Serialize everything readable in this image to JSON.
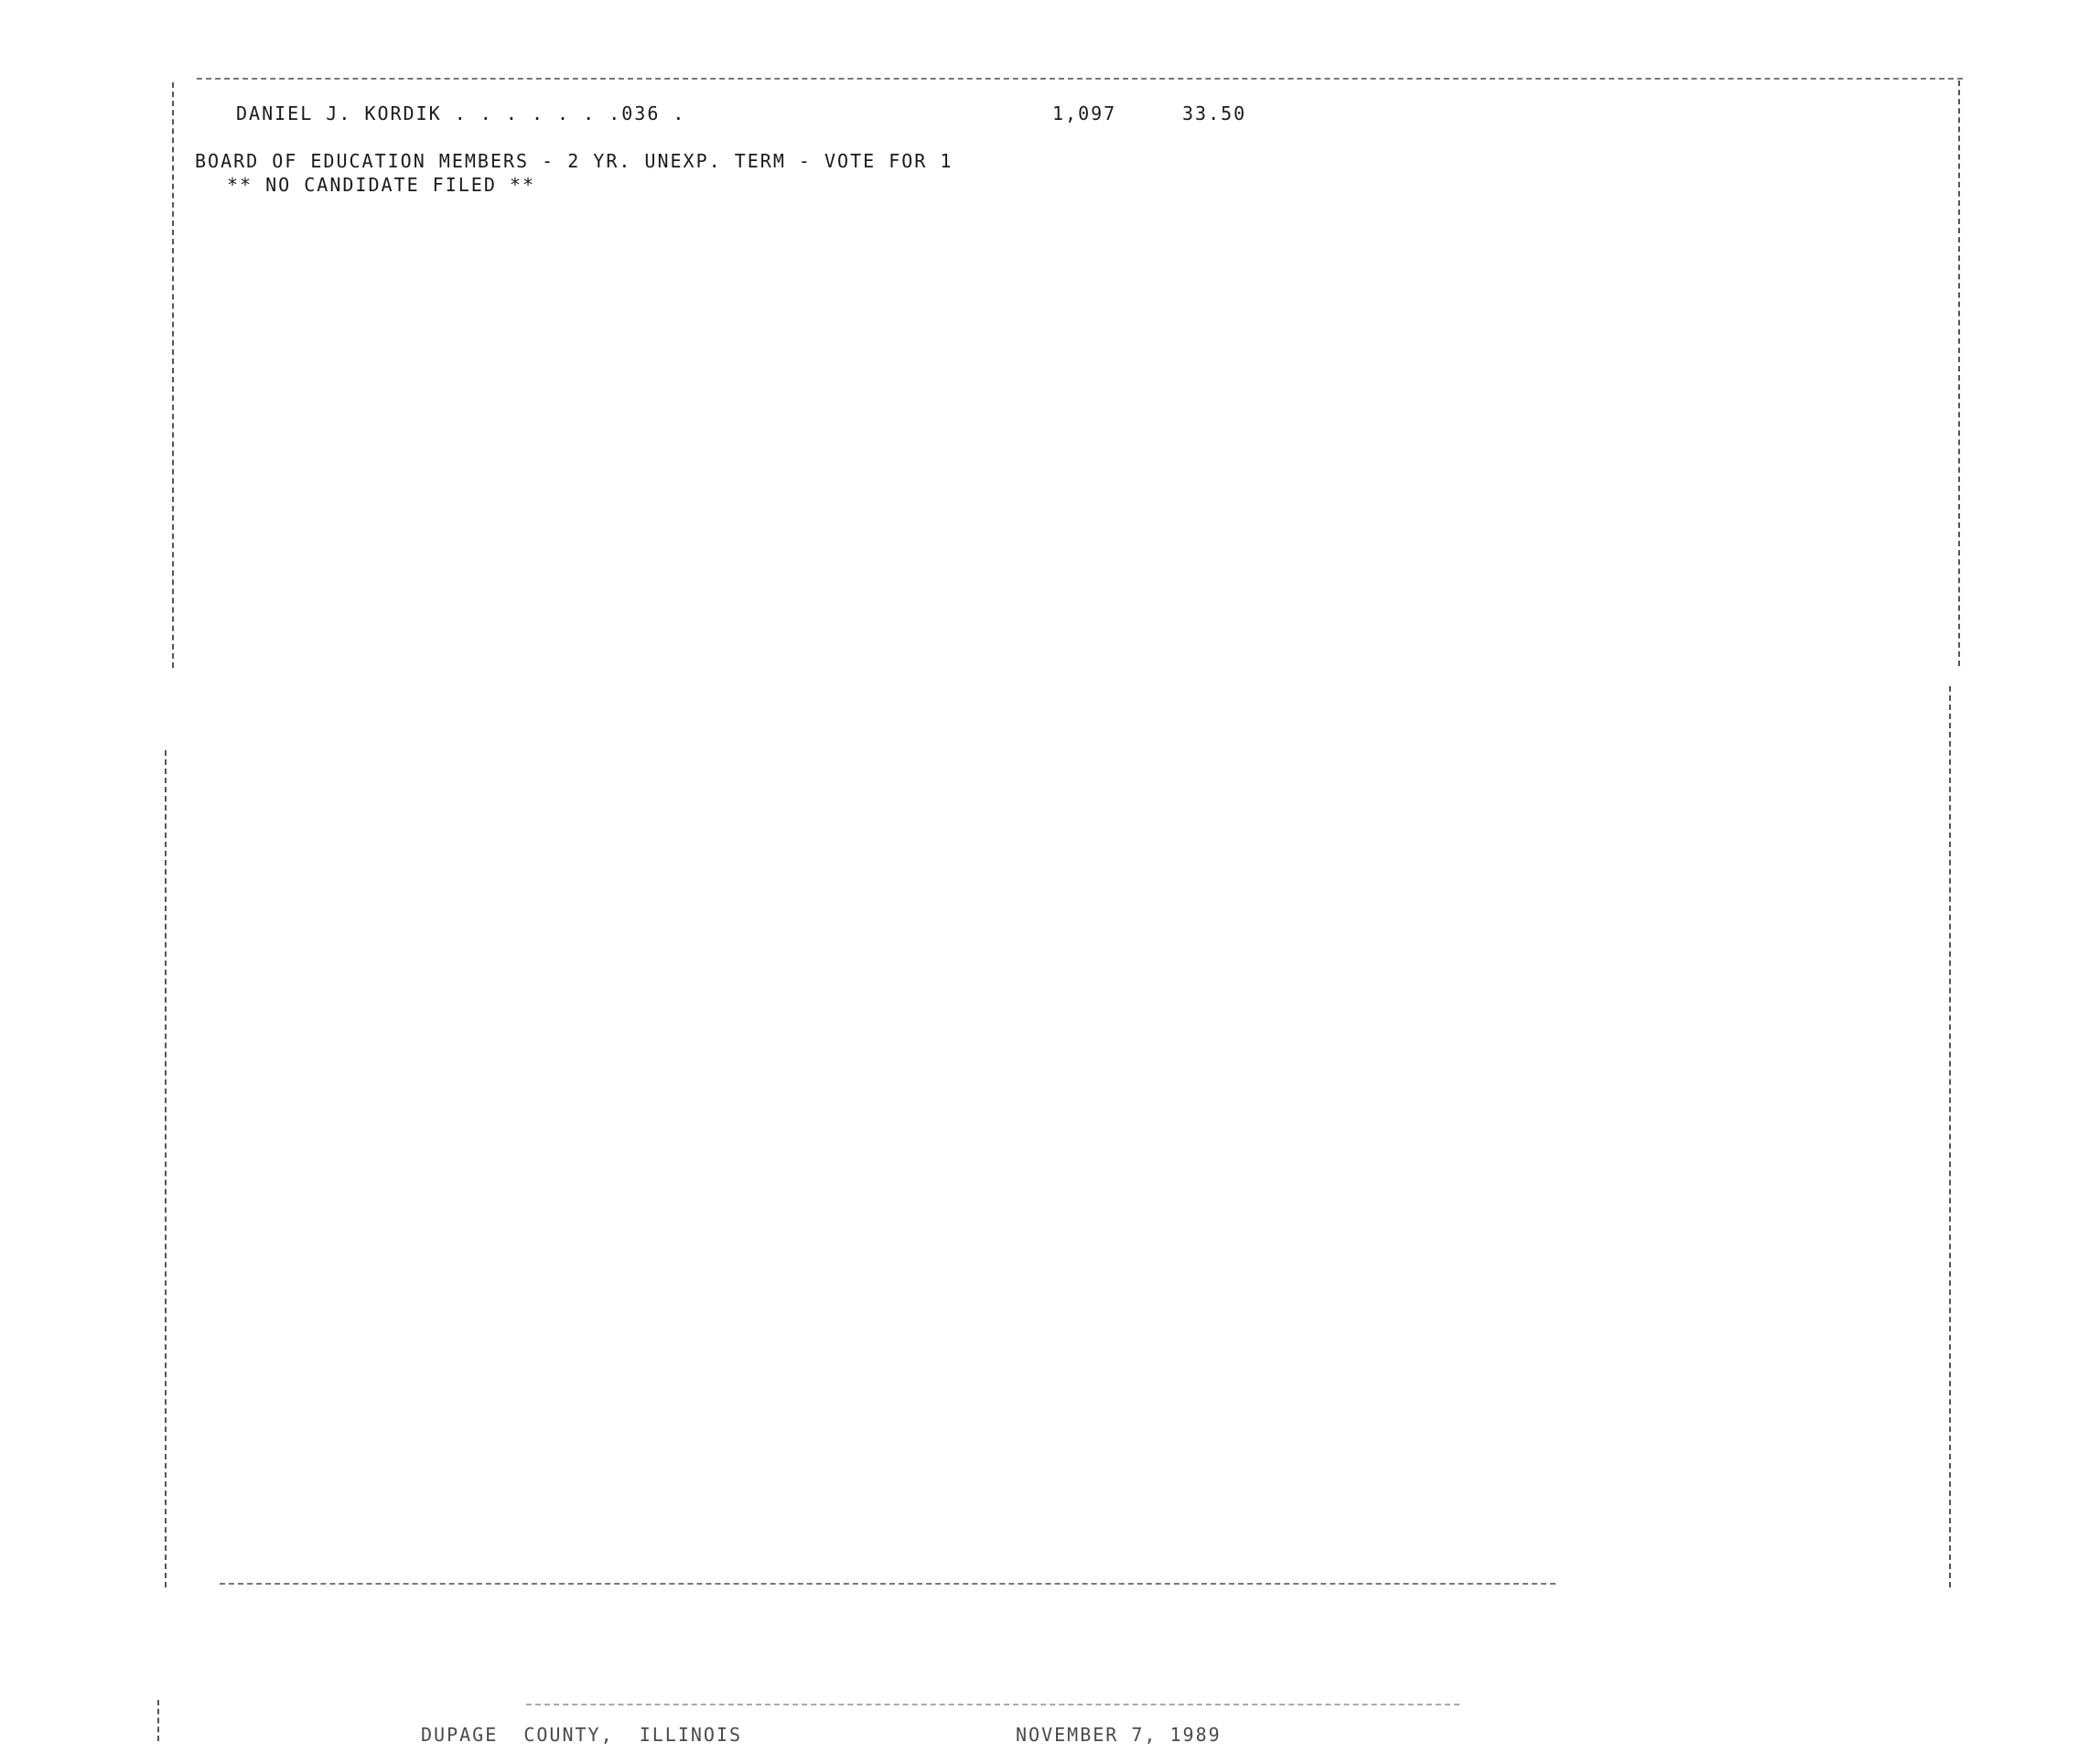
{
  "report": {
    "candidate_row": {
      "name": "DANIEL J. KORDIK . . . . . . .036 .",
      "votes": "1,097",
      "percent": "33.50"
    },
    "contest": {
      "title": "BOARD OF EDUCATION MEMBERS - 2 YR. UNEXP. TERM - VOTE FOR 1",
      "note": "** NO CANDIDATE FILED **"
    }
  },
  "footer": {
    "county": "DUPAGE  COUNTY,  ILLINOIS",
    "date": "NOVEMBER 7, 1989"
  }
}
